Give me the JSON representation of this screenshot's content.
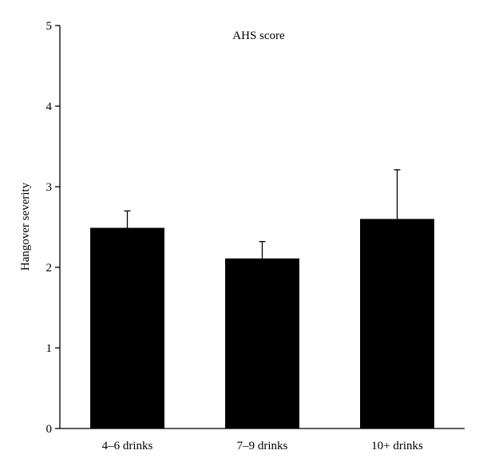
{
  "chart_data": {
    "type": "bar",
    "title": "AHS score",
    "xlabel": "",
    "ylabel": "Hangover severity",
    "ylim": [
      0,
      5
    ],
    "yticks": [
      0,
      1,
      2,
      3,
      4,
      5
    ],
    "categories": [
      "4–6 drinks",
      "7–9 drinks",
      "10+ drinks"
    ],
    "values": [
      2.49,
      2.11,
      2.6
    ],
    "errors": [
      0.21,
      0.21,
      0.61
    ],
    "bar_color": "#000000",
    "grid": false,
    "legend": "none"
  }
}
